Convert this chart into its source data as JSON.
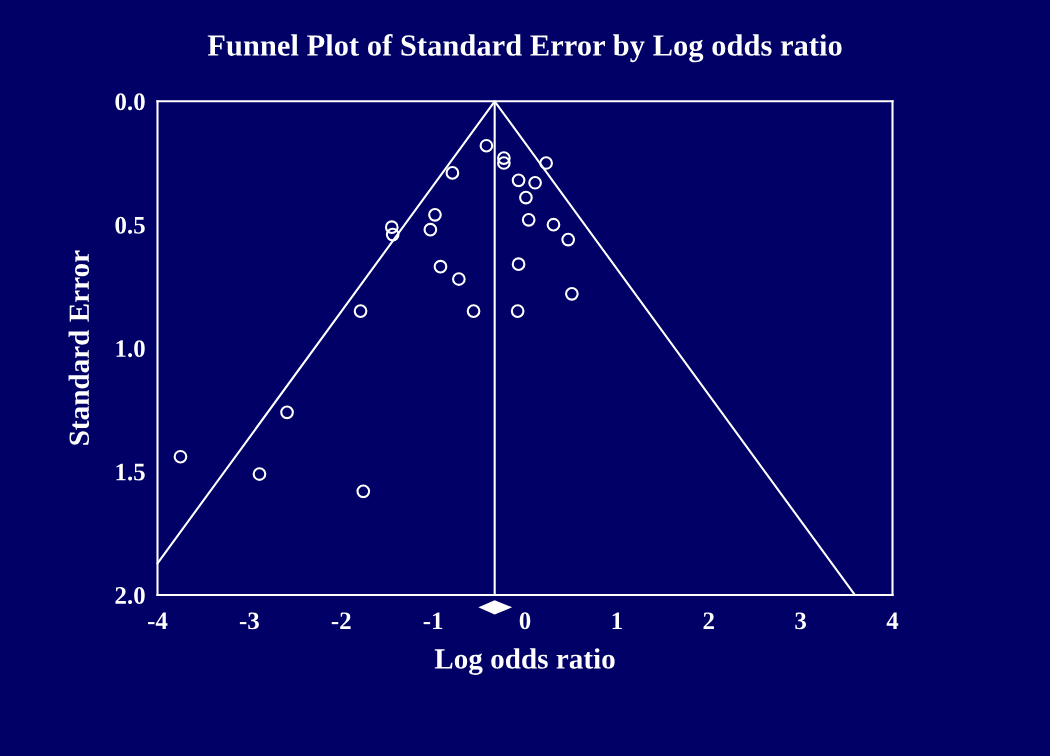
{
  "chart_data": {
    "type": "scatter",
    "title": "Funnel Plot of Standard Error by Log odds ratio",
    "xlabel": "Log odds ratio",
    "ylabel": "Standard Error",
    "xlim": [
      -4,
      4
    ],
    "ylim": [
      2.0,
      0.0
    ],
    "xticks": [
      -4,
      -3,
      -2,
      -1,
      0,
      1,
      2,
      3,
      4
    ],
    "yticks": [
      {
        "value": 0,
        "label": "0.0"
      },
      {
        "value": 0.5,
        "label": "0.5"
      },
      {
        "value": 1,
        "label": "1.0"
      },
      {
        "value": 1.5,
        "label": "1.5"
      },
      {
        "value": 2,
        "label": "2.0"
      }
    ],
    "series": [
      {
        "marker": "circle",
        "color": "#ffffff",
        "x": [
          -0.42,
          -0.23,
          -0.23,
          0.23,
          -0.79,
          -0.07,
          0.11,
          0.01,
          -0.98,
          -1.45,
          -1.44,
          -1.03,
          0.04,
          0.31,
          0.47,
          -0.92,
          -0.72,
          -0.07,
          0.51,
          -1.79,
          -0.56,
          -0.08,
          -3.75,
          -2.59,
          -2.89,
          -1.76
        ],
        "values": [
          0.18,
          0.23,
          0.25,
          0.25,
          0.29,
          0.32,
          0.33,
          0.39,
          0.46,
          0.51,
          0.54,
          0.52,
          0.48,
          0.5,
          0.56,
          0.67,
          0.72,
          0.66,
          0.78,
          0.85,
          0.85,
          0.85,
          1.44,
          1.26,
          1.51,
          1.58
        ]
      },
      {
        "type": "line",
        "marker": "none",
        "line_style": "solid",
        "color": "#ffffff",
        "x": [
          -4,
          -0.33,
          3.59
        ],
        "values": [
          1.872,
          0,
          2.0
        ]
      }
    ],
    "ref_lines": [
      {
        "axis": "x",
        "value": -0.33,
        "color": "#ffffff",
        "line_style": "solid"
      }
    ]
  }
}
